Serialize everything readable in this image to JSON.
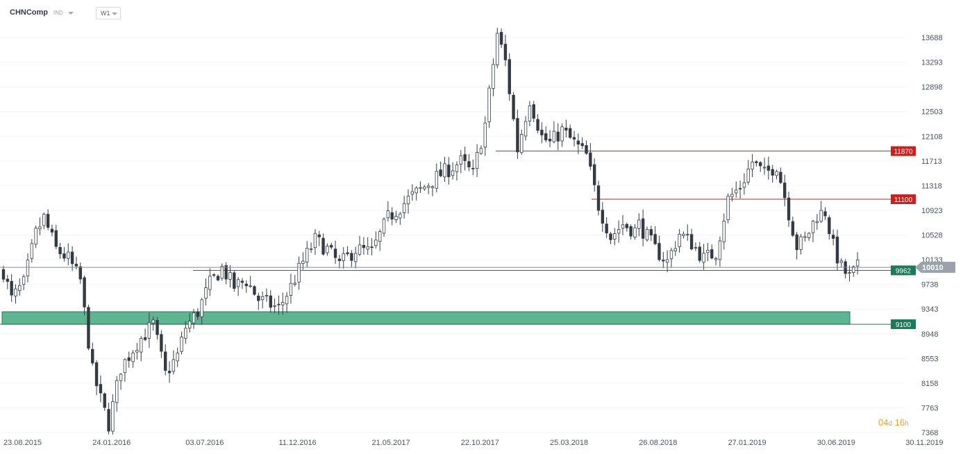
{
  "header": {
    "symbol": "CHNComp",
    "asset_class": "IND",
    "timeframe": "W1"
  },
  "countdown": {
    "days": "04",
    "days_unit": "d",
    "hours": "16",
    "hours_unit": "h"
  },
  "colors": {
    "candle_up": "#ffffff",
    "candle_down": "#333a45",
    "resistance": "#cc1f1f",
    "support": "#1a7a5a",
    "zone_fill": "#5fb592",
    "price_line": "#7d8c95",
    "current_price_tag": "#9aa3aa"
  },
  "chart_data": {
    "type": "candlestick",
    "title": "",
    "y_axis": {
      "ticks": [
        7368,
        7763,
        8158,
        8553,
        8948,
        9343,
        9738,
        10133,
        10528,
        10923,
        11318,
        11713,
        12108,
        12503,
        12898,
        13293,
        13688
      ],
      "ylim": [
        7300,
        14000
      ],
      "position": "right"
    },
    "x_axis": {
      "tick_labels": [
        "23.08.2015",
        "24.01.2016",
        "03.07.2016",
        "11.12.2016",
        "21.05.2017",
        "22.10.2017",
        "25.03.2018",
        "26.08.2018",
        "27.01.2019",
        "30.06.2019",
        "30.11.2019"
      ]
    },
    "current_price": 10010,
    "levels": [
      {
        "name": "11870",
        "value": 11870,
        "kind": "resistance"
      },
      {
        "name": "11100",
        "value": 11100,
        "kind": "resistance"
      },
      {
        "name": "9962",
        "value": 9962,
        "kind": "support"
      },
      {
        "name": "9100",
        "value": 9100,
        "kind": "support"
      }
    ],
    "support_zone": [
      9100,
      9300
    ],
    "price_anchors": [
      [
        "23.08.2015",
        9950
      ],
      [
        "06.09.2015",
        9500
      ],
      [
        "27.09.2015",
        9750
      ],
      [
        "18.10.2015",
        10550
      ],
      [
        "01.11.2015",
        10800
      ],
      [
        "22.11.2015",
        10300
      ],
      [
        "13.12.2015",
        10150
      ],
      [
        "03.01.2016",
        9800
      ],
      [
        "10.01.2016",
        9300
      ],
      [
        "24.01.2016",
        8350
      ],
      [
        "07.02.2016",
        7900
      ],
      [
        "21.02.2016",
        7500
      ],
      [
        "13.03.2016",
        8400
      ],
      [
        "10.04.2016",
        8800
      ],
      [
        "08.05.2016",
        9100
      ],
      [
        "29.05.2016",
        8300
      ],
      [
        "19.06.2016",
        8600
      ],
      [
        "03.07.2016",
        9050
      ],
      [
        "24.07.2016",
        9300
      ],
      [
        "14.08.2016",
        9750
      ],
      [
        "04.09.2016",
        10000
      ],
      [
        "25.09.2016",
        9700
      ],
      [
        "16.10.2016",
        9800
      ],
      [
        "06.11.2016",
        9500
      ],
      [
        "11.12.2016",
        9350
      ],
      [
        "01.01.2017",
        9700
      ],
      [
        "22.01.2017",
        10100
      ],
      [
        "12.02.2017",
        10450
      ],
      [
        "05.03.2017",
        10300
      ],
      [
        "26.03.2017",
        10050
      ],
      [
        "23.04.2017",
        10300
      ],
      [
        "21.05.2017",
        10250
      ],
      [
        "18.06.2017",
        10800
      ],
      [
        "23.07.2017",
        11100
      ],
      [
        "20.08.2017",
        11300
      ],
      [
        "17.09.2017",
        11500
      ],
      [
        "22.10.2017",
        11700
      ],
      [
        "12.11.2017",
        11500
      ],
      [
        "03.12.2017",
        12300
      ],
      [
        "24.12.2017",
        13750
      ],
      [
        "07.01.2018",
        13300
      ],
      [
        "28.01.2018",
        11900
      ],
      [
        "18.02.2018",
        12700
      ],
      [
        "11.03.2018",
        12100
      ],
      [
        "25.03.2018",
        12000
      ],
      [
        "15.04.2018",
        12200
      ],
      [
        "06.05.2018",
        12000
      ],
      [
        "27.05.2018",
        11800
      ],
      [
        "17.06.2018",
        11000
      ],
      [
        "08.07.2018",
        10500
      ],
      [
        "29.07.2018",
        10700
      ],
      [
        "19.08.2018",
        10600
      ],
      [
        "26.08.2018",
        10700
      ],
      [
        "23.09.2018",
        10300
      ],
      [
        "14.10.2018",
        10100
      ],
      [
        "04.11.2018",
        10550
      ],
      [
        "25.11.2018",
        10400
      ],
      [
        "16.12.2018",
        10150
      ],
      [
        "06.01.2019",
        10250
      ],
      [
        "27.01.2019",
        11100
      ],
      [
        "17.02.2019",
        11300
      ],
      [
        "10.03.2019",
        11700
      ],
      [
        "31.03.2019",
        11500
      ],
      [
        "21.04.2019",
        11650
      ],
      [
        "05.05.2019",
        11150
      ],
      [
        "26.05.2019",
        10350
      ],
      [
        "09.06.2019",
        10450
      ],
      [
        "30.06.2019",
        10850
      ],
      [
        "14.07.2019",
        10900
      ],
      [
        "28.07.2019",
        10350
      ],
      [
        "11.08.2019",
        10000
      ],
      [
        "25.08.2019",
        9850
      ],
      [
        "08.09.2019",
        10010
      ]
    ]
  }
}
